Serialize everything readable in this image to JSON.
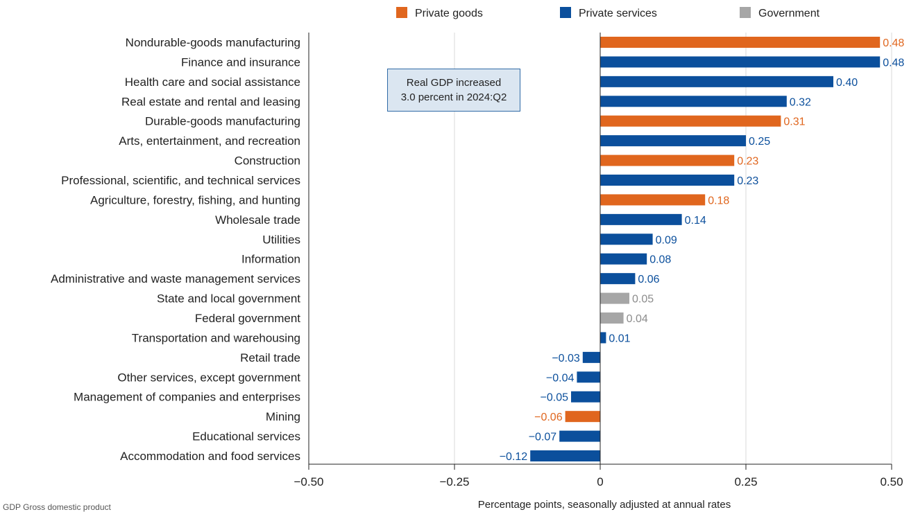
{
  "chart_data": {
    "type": "bar",
    "orientation": "horizontal",
    "xlabel": "Percentage points, seasonally adjusted at annual rates",
    "xlim": [
      -0.5,
      0.5
    ],
    "xticks": [
      -0.5,
      -0.25,
      0,
      0.25,
      0.5
    ],
    "xtick_labels": [
      "−0.50",
      "−0.25",
      "0",
      "0.25",
      "0.50"
    ],
    "grid": "vertical",
    "legend_position": "top",
    "legend": [
      {
        "name": "Private goods",
        "color": "#e0661e"
      },
      {
        "name": "Private services",
        "color": "#0b4f9c"
      },
      {
        "name": "Government",
        "color": "#a6a6a6"
      }
    ],
    "categories": [
      "Nondurable-goods manufacturing",
      "Finance and insurance",
      "Health care and social assistance",
      "Real estate and rental and leasing",
      "Durable-goods manufacturing",
      "Arts, entertainment, and recreation",
      "Construction",
      "Professional, scientific, and technical services",
      "Agriculture, forestry, fishing, and hunting",
      "Wholesale trade",
      "Utilities",
      "Information",
      "Administrative and waste management services",
      "State and local government",
      "Federal government",
      "Transportation and warehousing",
      "Retail trade",
      "Other services, except government",
      "Management of companies and enterprises",
      "Mining",
      "Educational services",
      "Accommodation and food services"
    ],
    "values": [
      0.48,
      0.48,
      0.4,
      0.32,
      0.31,
      0.25,
      0.23,
      0.23,
      0.18,
      0.14,
      0.09,
      0.08,
      0.06,
      0.05,
      0.04,
      0.01,
      -0.03,
      -0.04,
      -0.05,
      -0.06,
      -0.07,
      -0.12
    ],
    "value_labels": [
      "0.48",
      "0.48",
      "0.40",
      "0.32",
      "0.31",
      "0.25",
      "0.23",
      "0.23",
      "0.18",
      "0.14",
      "0.09",
      "0.08",
      "0.06",
      "0.05",
      "0.04",
      "0.01",
      "−0.03",
      "−0.04",
      "−0.05",
      "−0.06",
      "−0.07",
      "−0.12"
    ],
    "groups": [
      "Private goods",
      "Private services",
      "Private services",
      "Private services",
      "Private goods",
      "Private services",
      "Private goods",
      "Private services",
      "Private goods",
      "Private services",
      "Private services",
      "Private services",
      "Private services",
      "Government",
      "Government",
      "Private services",
      "Private services",
      "Private services",
      "Private services",
      "Private goods",
      "Private services",
      "Private services"
    ],
    "annotation": [
      "Real GDP increased",
      "3.0 percent in 2024:Q2"
    ]
  },
  "colors": {
    "private_goods": "#e0661e",
    "private_services": "#0b4f9c",
    "government": "#a6a6a6",
    "government_label": "#8c8c8c",
    "grid": "#d9d9d9",
    "axis": "#222222"
  },
  "footnote": "GDP Gross domestic product"
}
